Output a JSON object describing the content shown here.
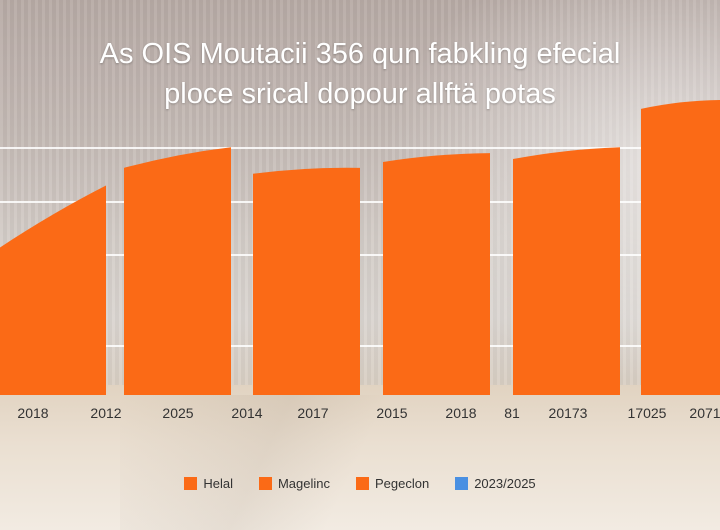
{
  "title_lines": [
    "As OIS Moutacii 356 qun fabkling efecial",
    "ploce srical dopour  allftä potas"
  ],
  "colors": {
    "bar": "#fb6a16",
    "legend_4": "#4a90e2"
  },
  "legend": [
    {
      "label": "Helal",
      "color": "#fb6a16"
    },
    {
      "label": "Magelinc",
      "color": "#fb6a16"
    },
    {
      "label": "Pegeclon",
      "color": "#fb6a16"
    },
    {
      "label": "2023/2025",
      "color": "#4a90e2"
    }
  ],
  "chart_data": {
    "type": "bar",
    "grid": true,
    "legend_position": "bottom",
    "ylim": [
      0,
      100
    ],
    "tick_labels": [
      "2018",
      "2012",
      "2025",
      "2014",
      "2017",
      "2015",
      "2018",
      "81",
      "20173",
      "17025",
      "2071"
    ],
    "bars": [
      {
        "start": 50,
        "end": 71
      },
      {
        "start": 77,
        "end": 84
      },
      {
        "start": 75,
        "end": 77
      },
      {
        "start": 79,
        "end": 82
      },
      {
        "start": 80,
        "end": 84
      },
      {
        "start": 97,
        "end": 100
      }
    ]
  }
}
